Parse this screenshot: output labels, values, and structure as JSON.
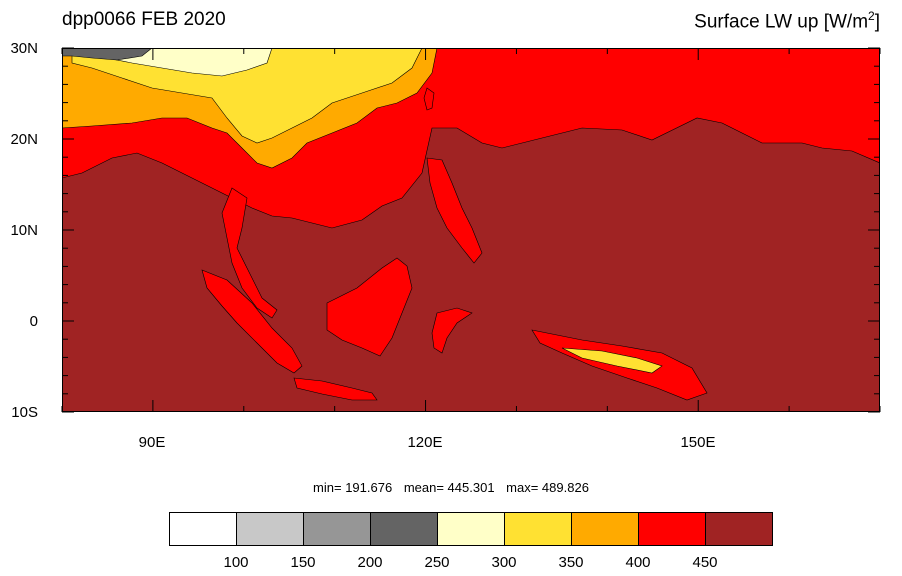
{
  "title_left": "dpp0066 FEB 2020",
  "title_right": "Surface LW up [W/m",
  "title_right_sup": "2",
  "title_right_tail": "]",
  "y_axis": [
    "30N",
    "20N",
    "10N",
    "0",
    "10S"
  ],
  "x_axis": [
    "90E",
    "120E",
    "150E"
  ],
  "stats": {
    "min": "min= 191.676",
    "mean": "mean= 445.301",
    "max": "max= 489.826"
  },
  "colorbar": {
    "labels": [
      "100",
      "150",
      "200",
      "250",
      "300",
      "350",
      "400",
      "450"
    ],
    "colors": [
      "#ffffff",
      "#c8c8c8",
      "#969696",
      "#646464",
      "#ffffc8",
      "#ffe132",
      "#ffaa00",
      "#ff0000",
      "#a02323"
    ]
  },
  "map_colors": {
    "ocean": "#a02323",
    "land_warm": "#ff0000",
    "land_mid": "#ffaa00",
    "land_cool": "#ffe132",
    "land_cold": "#ffffc8",
    "land_colder": "#646464"
  }
}
